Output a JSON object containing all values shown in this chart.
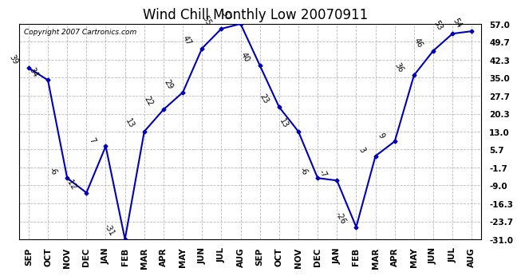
{
  "title": "Wind Chill Monthly Low 20070911",
  "copyright": "Copyright 2007 Cartronics.com",
  "months": [
    "SEP",
    "OCT",
    "NOV",
    "DEC",
    "JAN",
    "FEB",
    "MAR",
    "APR",
    "MAY",
    "JUN",
    "JUL",
    "AUG",
    "SEP",
    "OCT",
    "NOV",
    "DEC",
    "JAN",
    "FEB",
    "MAR",
    "APR",
    "MAY",
    "JUN",
    "JUL",
    "AUG"
  ],
  "values": [
    39,
    34,
    -6,
    -12,
    7,
    -31,
    13,
    22,
    29,
    47,
    55,
    57,
    40,
    23,
    13,
    -6,
    -7,
    -26,
    3,
    9,
    36,
    46,
    53,
    54
  ],
  "yticks": [
    57.0,
    49.7,
    42.3,
    35.0,
    27.7,
    20.3,
    13.0,
    5.7,
    -1.7,
    -9.0,
    -16.3,
    -23.7,
    -31.0
  ],
  "line_color": "#0000bb",
  "marker_color": "#0000bb",
  "bg_color": "#ffffff",
  "grid_color": "#bbbbbb",
  "title_fontsize": 12,
  "label_fontsize": 7,
  "tick_fontsize": 7.5,
  "copyright_fontsize": 6.5,
  "label_rotation": -60
}
